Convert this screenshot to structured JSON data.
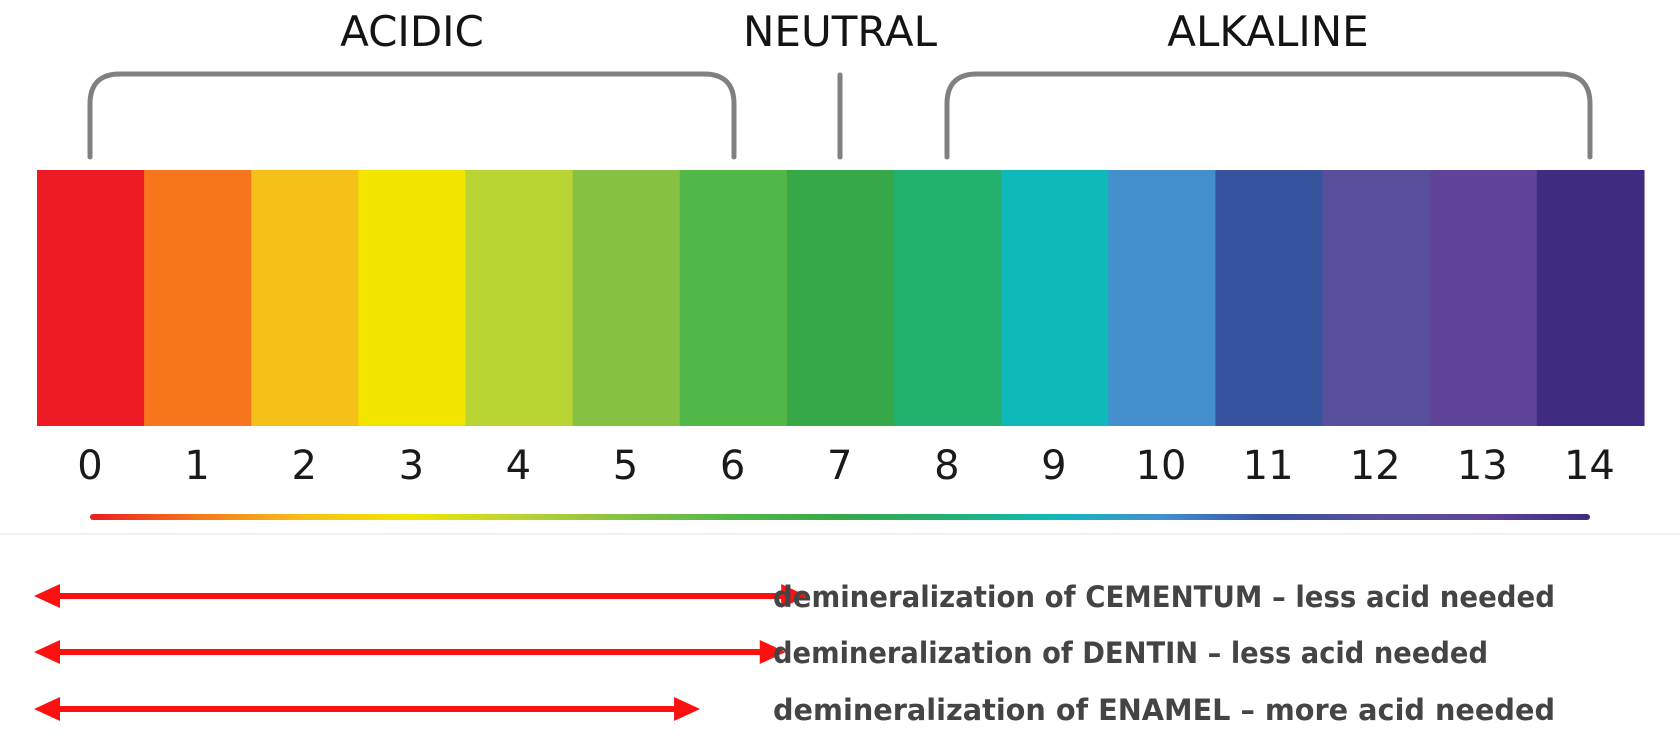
{
  "regions": {
    "acidic": "ACIDIC",
    "neutral": "NEUTRAL",
    "alkaline": "ALKALINE"
  },
  "scale": [
    {
      "value": "0",
      "color": "#ed1c24"
    },
    {
      "value": "1",
      "color": "#f7761b"
    },
    {
      "value": "2",
      "color": "#f5c118"
    },
    {
      "value": "3",
      "color": "#f3e500"
    },
    {
      "value": "4",
      "color": "#b7d433"
    },
    {
      "value": "5",
      "color": "#86c144"
    },
    {
      "value": "6",
      "color": "#52b848"
    },
    {
      "value": "7",
      "color": "#37a848"
    },
    {
      "value": "8",
      "color": "#22b16f"
    },
    {
      "value": "9",
      "color": "#0db9b9"
    },
    {
      "value": "10",
      "color": "#458fcd"
    },
    {
      "value": "11",
      "color": "#38539e"
    },
    {
      "value": "12",
      "color": "#574e9c"
    },
    {
      "value": "13",
      "color": "#5f449a"
    },
    {
      "value": "14",
      "color": "#3f2c80"
    }
  ],
  "arrow_color": "#ff1010",
  "notes": [
    {
      "text": "demineralization of CEMENTUM – less acid needed",
      "max_ph": 6.5
    },
    {
      "text": "demineralization of DENTIN – less acid needed",
      "max_ph": 6.3
    },
    {
      "text": "demineralization of ENAMEL – more acid needed",
      "max_ph": 5.5
    }
  ]
}
